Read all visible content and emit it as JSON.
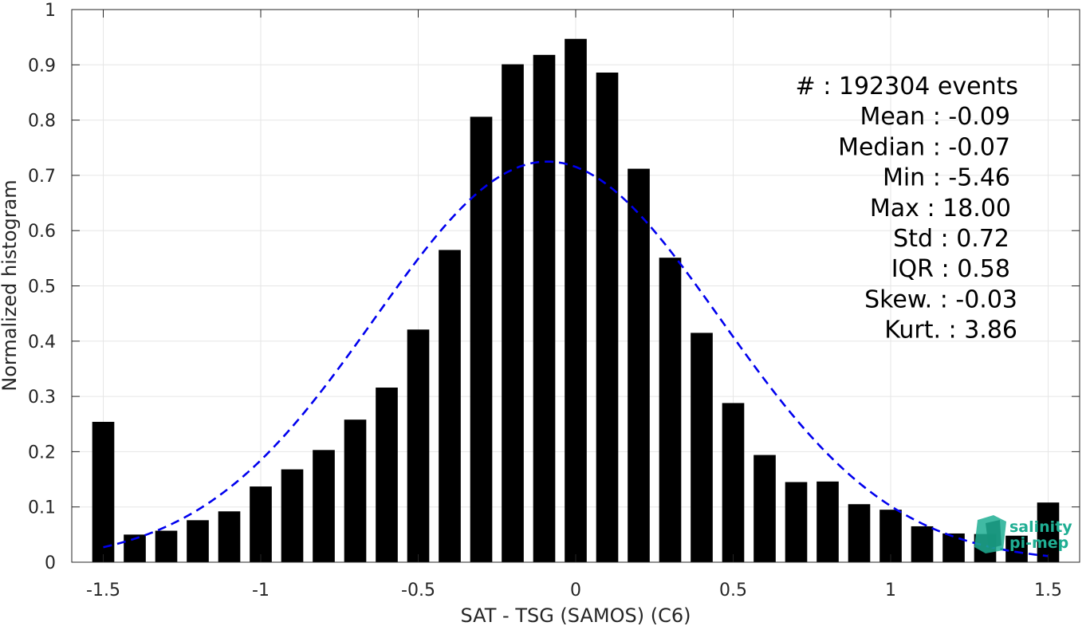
{
  "chart_data": {
    "type": "bar",
    "xlabel": "SAT - TSG (SAMOS) (C6)",
    "ylabel": "Normalized histogram",
    "xlim": [
      -1.6,
      1.6
    ],
    "ylim": [
      0,
      1
    ],
    "xticks": [
      -1.5,
      -1,
      -0.5,
      0,
      0.5,
      1,
      1.5
    ],
    "xtick_labels": [
      "-1.5",
      "-1",
      "-0.5",
      "0",
      "0.5",
      "1",
      "1.5"
    ],
    "yticks": [
      0,
      0.1,
      0.2,
      0.3,
      0.4,
      0.5,
      0.6,
      0.7,
      0.8,
      0.9,
      1
    ],
    "ytick_labels": [
      "0",
      "0.1",
      "0.2",
      "0.3",
      "0.4",
      "0.5",
      "0.6",
      "0.7",
      "0.8",
      "0.9",
      "1"
    ],
    "grid": true,
    "bar_color": "#000000",
    "x": [
      -1.5,
      -1.4,
      -1.3,
      -1.2,
      -1.1,
      -1.0,
      -0.9,
      -0.8,
      -0.7,
      -0.6,
      -0.5,
      -0.4,
      -0.3,
      -0.2,
      -0.1,
      0.0,
      0.1,
      0.2,
      0.3,
      0.4,
      0.5,
      0.6,
      0.7,
      0.8,
      0.9,
      1.0,
      1.1,
      1.2,
      1.3,
      1.4,
      1.5
    ],
    "values": [
      0.254,
      0.05,
      0.057,
      0.076,
      0.092,
      0.137,
      0.168,
      0.203,
      0.258,
      0.316,
      0.421,
      0.565,
      0.806,
      0.901,
      0.918,
      0.947,
      0.886,
      0.712,
      0.551,
      0.415,
      0.288,
      0.194,
      0.145,
      0.146,
      0.105,
      0.095,
      0.065,
      0.052,
      0.051,
      0.048,
      0.108
    ],
    "fit_curve": {
      "type": "gaussian",
      "color": "#0000ee",
      "style": "dashed",
      "mean": -0.09,
      "std": 0.55,
      "peak": 0.725,
      "x_range": [
        -1.5,
        1.5
      ]
    },
    "annotations": [
      "#  : 192304 events",
      "Mean : -0.09",
      "Median : -0.07",
      "Min : -5.46",
      "Max : 18.00",
      "Std : 0.72",
      "IQR : 0.58",
      "Skew. : -0.03",
      "Kurt. : 3.86"
    ]
  },
  "logo": {
    "text_line1": "salinity",
    "text_line2": "pi-mep",
    "color": "#1fae93"
  }
}
